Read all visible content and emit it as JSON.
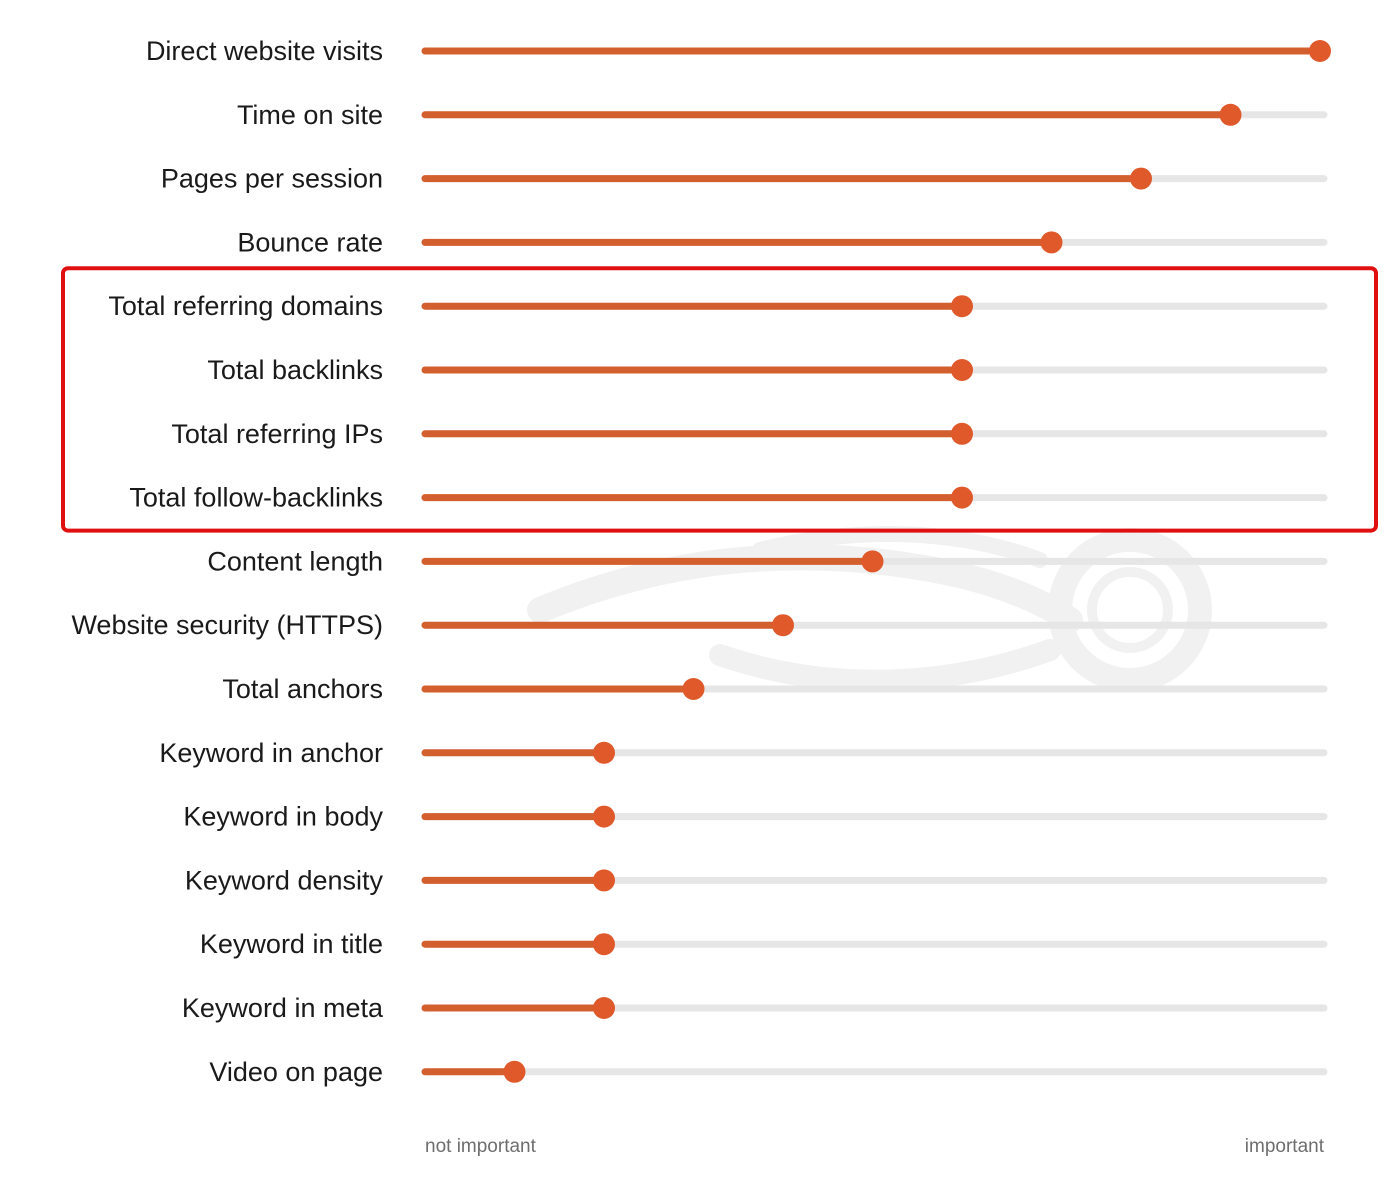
{
  "chart_data": {
    "type": "bar",
    "title": "",
    "xlabel": "",
    "ylabel": "",
    "xlim": [
      0,
      100
    ],
    "grid": false,
    "legend": "none",
    "scale_labels": {
      "min": "not important",
      "max": "important"
    },
    "categories": [
      "Direct website visits",
      "Time on site",
      "Pages per session",
      "Bounce rate",
      "Total referring domains",
      "Total backlinks",
      "Total referring IPs",
      "Total follow-backlinks",
      "Content length",
      "Website security (HTTPS)",
      "Total anchors",
      "Keyword in anchor",
      "Keyword in body",
      "Keyword density",
      "Keyword in title",
      "Keyword in meta",
      "Video on page"
    ],
    "values": [
      100,
      90,
      80,
      70,
      60,
      60,
      60,
      60,
      50,
      40,
      30,
      20,
      20,
      20,
      20,
      20,
      10
    ],
    "highlight": {
      "categories": [
        "Total referring domains",
        "Total backlinks",
        "Total referring IPs",
        "Total follow-backlinks"
      ],
      "color": "#e01010"
    },
    "colors": {
      "fill": "#d45f2e",
      "track": "#e6e6e6",
      "knob": "#e0592a",
      "watermark": "#f1f1f1"
    }
  }
}
